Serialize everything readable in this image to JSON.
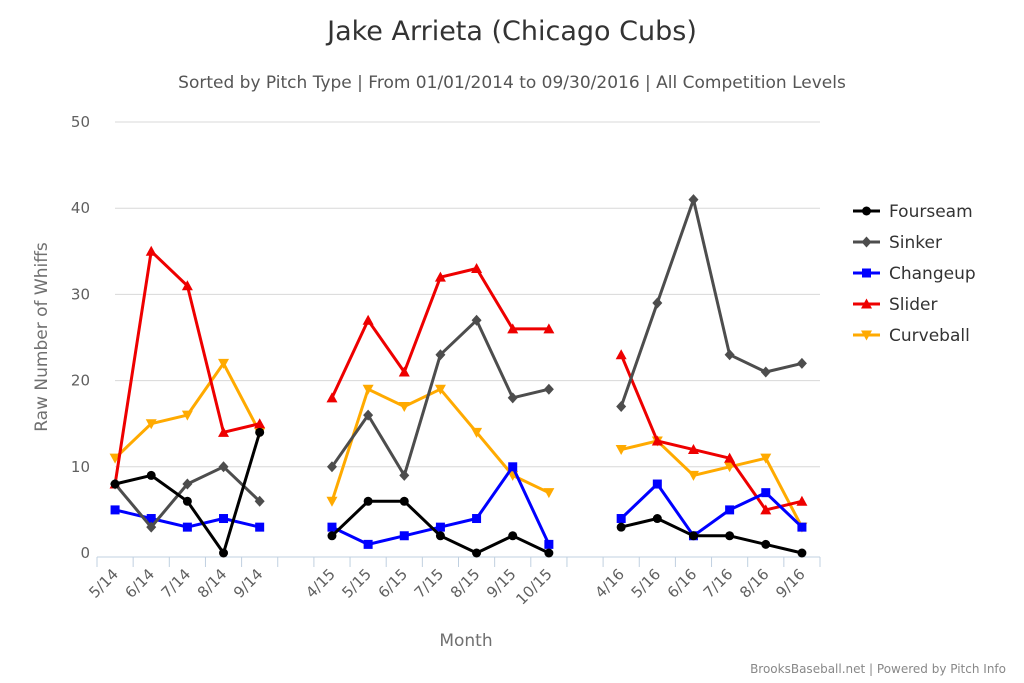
{
  "chart_data": {
    "type": "line",
    "title": "Jake Arrieta (Chicago Cubs)",
    "subtitle": "Sorted by Pitch Type | From 01/01/2014 to 09/30/2016 | All Competition Levels",
    "xlabel": "Month",
    "ylabel": "Raw Number of Whiffs",
    "ylim": [
      0,
      50
    ],
    "yticks": [
      0,
      10,
      20,
      30,
      40,
      50
    ],
    "grid": true,
    "legend_position": "right",
    "categories": [
      "5/14",
      "6/14",
      "7/14",
      "8/14",
      "9/14",
      "",
      "4/15",
      "5/15",
      "6/15",
      "7/15",
      "8/15",
      "9/15",
      "10/15",
      "",
      "4/16",
      "5/16",
      "6/16",
      "7/16",
      "8/16",
      "9/16"
    ],
    "series": [
      {
        "name": "Fourseam",
        "color": "#000000",
        "marker": "circle",
        "values": [
          8,
          9,
          6,
          0,
          14,
          null,
          2,
          6,
          6,
          2,
          0,
          2,
          0,
          null,
          3,
          4,
          2,
          2,
          1,
          0
        ]
      },
      {
        "name": "Sinker",
        "color": "#4d4d4d",
        "marker": "diamond",
        "values": [
          8,
          3,
          8,
          10,
          6,
          null,
          10,
          16,
          9,
          23,
          27,
          18,
          19,
          null,
          17,
          29,
          41,
          23,
          21,
          22
        ]
      },
      {
        "name": "Changeup",
        "color": "#0000ff",
        "marker": "square",
        "values": [
          5,
          4,
          3,
          4,
          3,
          null,
          3,
          1,
          2,
          3,
          4,
          10,
          1,
          null,
          4,
          8,
          2,
          5,
          7,
          3
        ]
      },
      {
        "name": "Slider",
        "color": "#ee0000",
        "marker": "triangle",
        "values": [
          8,
          35,
          31,
          14,
          15,
          null,
          18,
          27,
          21,
          32,
          33,
          26,
          26,
          null,
          23,
          13,
          12,
          11,
          5,
          6
        ]
      },
      {
        "name": "Curveball",
        "color": "#ffaa00",
        "marker": "triangle-down",
        "values": [
          11,
          15,
          16,
          22,
          14,
          null,
          6,
          19,
          17,
          19,
          14,
          9,
          7,
          null,
          12,
          13,
          9,
          10,
          11,
          3
        ]
      }
    ],
    "credits": "BrooksBaseball.net | Powered by Pitch Info"
  }
}
